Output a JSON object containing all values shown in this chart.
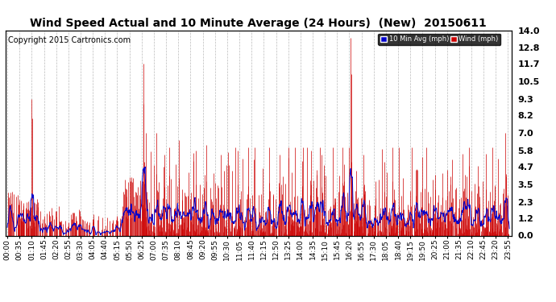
{
  "title": "Wind Speed Actual and 10 Minute Average (24 Hours)  (New)  20150611",
  "copyright": "Copyright 2015 Cartronics.com",
  "ylabel_right_ticks": [
    0.0,
    1.2,
    2.3,
    3.5,
    4.7,
    5.8,
    7.0,
    8.2,
    9.3,
    10.5,
    11.7,
    12.8,
    14.0
  ],
  "ylim": [
    0.0,
    14.0
  ],
  "legend_avg_label": "10 Min Avg (mph)",
  "legend_wind_label": "Wind (mph)",
  "legend_avg_bg": "#0000cc",
  "legend_wind_bg": "#cc0000",
  "bar_color": "#cc0000",
  "line_color": "#0000cc",
  "background_color": "#ffffff",
  "grid_color": "#bbbbbb",
  "title_color": "#000000",
  "copyright_color": "#000000",
  "title_fontsize": 10,
  "copyright_fontsize": 7,
  "tick_fontsize": 6.5,
  "n_points": 1440,
  "tick_interval_min": 35,
  "avg_window_min": 10
}
